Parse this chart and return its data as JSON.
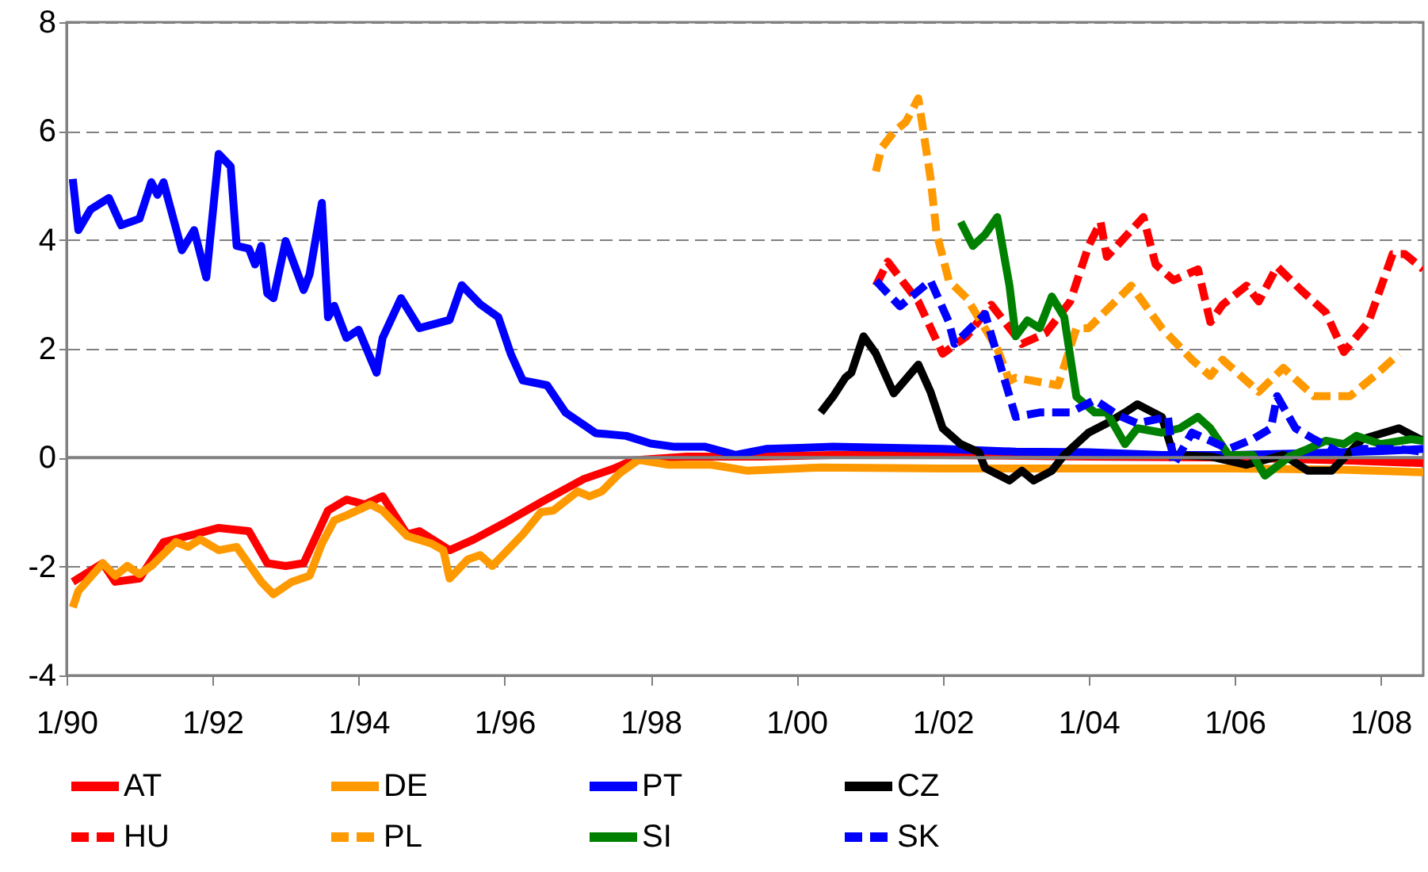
{
  "chart_data": {
    "type": "line",
    "xlim": [
      "1990-01",
      "2008-08"
    ],
    "xticks": [
      {
        "value": "1990-01",
        "label": "1/90"
      },
      {
        "value": "1992-01",
        "label": "1/92"
      },
      {
        "value": "1994-01",
        "label": "1/94"
      },
      {
        "value": "1996-01",
        "label": "1/96"
      },
      {
        "value": "1998-01",
        "label": "1/98"
      },
      {
        "value": "2000-01",
        "label": "1/00"
      },
      {
        "value": "2002-01",
        "label": "1/02"
      },
      {
        "value": "2004-01",
        "label": "1/04"
      },
      {
        "value": "2006-01",
        "label": "1/06"
      },
      {
        "value": "2008-01",
        "label": "1/08"
      }
    ],
    "ylim": [
      -4,
      8
    ],
    "yticks": [
      -4,
      -2,
      0,
      2,
      4,
      6,
      8
    ],
    "grid": "y",
    "legend": "bottom",
    "ref_lines": [
      {
        "axis": "y",
        "value": 0,
        "label": null,
        "color": "#808080",
        "line_style": "solid"
      }
    ],
    "series": [
      {
        "name": "AT",
        "color": "#ff0000",
        "line_style": "solid",
        "x": [
          "1990-02",
          "1990-07",
          "1990-09",
          "1991-01",
          "1991-05",
          "1991-10",
          "1992-02",
          "1992-07",
          "1992-10",
          "1993-01",
          "1993-04",
          "1993-08",
          "1993-11",
          "1994-02",
          "1994-05",
          "1994-09",
          "1994-11",
          "1995-04",
          "1995-08",
          "1996-01",
          "1996-07",
          "1997-02",
          "1997-07",
          "1997-10",
          "1998-07",
          "1999-07",
          "2000-07",
          "2002-01",
          "2004-01",
          "2006-01",
          "2007-07",
          "2008-08"
        ],
        "values": [
          -2.28,
          -1.94,
          -2.28,
          -2.22,
          -1.55,
          -1.41,
          -1.29,
          -1.35,
          -1.94,
          -1.99,
          -1.94,
          -0.97,
          -0.77,
          -0.86,
          -0.71,
          -1.41,
          -1.35,
          -1.7,
          -1.5,
          -1.2,
          -0.82,
          -0.39,
          -0.2,
          -0.05,
          0.02,
          0.02,
          0.05,
          0.05,
          0.02,
          0.0,
          -0.05,
          -0.1
        ]
      },
      {
        "name": "DE",
        "color": "#ff9900",
        "line_style": "solid",
        "x": [
          "1990-02",
          "1990-03",
          "1990-07",
          "1990-09",
          "1990-11",
          "1991-01",
          "1991-03",
          "1991-07",
          "1991-09",
          "1991-11",
          "1992-02",
          "1992-05",
          "1992-09",
          "1992-11",
          "1993-02",
          "1993-05",
          "1993-07",
          "1993-09",
          "1993-11",
          "1994-03",
          "1994-05",
          "1994-09",
          "1995-01",
          "1995-03",
          "1995-04",
          "1995-07",
          "1995-09",
          "1995-11",
          "1996-04",
          "1996-07",
          "1996-09",
          "1997-01",
          "1997-03",
          "1997-05",
          "1997-08",
          "1997-11",
          "1998-04",
          "1998-11",
          "1999-05",
          "2000-05",
          "2002-01",
          "2004-01",
          "2006-01",
          "2007-07",
          "2008-08"
        ],
        "values": [
          -2.75,
          -2.45,
          -1.94,
          -2.17,
          -1.99,
          -2.14,
          -1.99,
          -1.55,
          -1.64,
          -1.5,
          -1.7,
          -1.64,
          -2.28,
          -2.51,
          -2.28,
          -2.17,
          -1.58,
          -1.15,
          -1.06,
          -0.86,
          -0.97,
          -1.44,
          -1.58,
          -1.7,
          -2.22,
          -1.87,
          -1.79,
          -1.99,
          -1.41,
          -1.0,
          -0.97,
          -0.62,
          -0.71,
          -0.62,
          -0.28,
          -0.04,
          -0.13,
          -0.13,
          -0.24,
          -0.18,
          -0.2,
          -0.2,
          -0.2,
          -0.22,
          -0.27
        ]
      },
      {
        "name": "PT",
        "color": "#0000ff",
        "line_style": "solid",
        "x": [
          "1990-02",
          "1990-03",
          "1990-05",
          "1990-08",
          "1990-10",
          "1991-01",
          "1991-03",
          "1991-04",
          "1991-05",
          "1991-08",
          "1991-10",
          "1991-12",
          "1992-02",
          "1992-04",
          "1992-05",
          "1992-07",
          "1992-08",
          "1992-09",
          "1992-10",
          "1992-11",
          "1993-01",
          "1993-04",
          "1993-05",
          "1993-07",
          "1993-08",
          "1993-09",
          "1993-11",
          "1994-01",
          "1994-04",
          "1994-05",
          "1994-08",
          "1994-11",
          "1995-04",
          "1995-06",
          "1995-09",
          "1995-12",
          "1996-02",
          "1996-04",
          "1996-08",
          "1996-11",
          "1997-02",
          "1997-04",
          "1997-09",
          "1998-01",
          "1998-05",
          "1998-10",
          "1999-03",
          "1999-08",
          "2000-07",
          "2002-01",
          "2003-01",
          "2004-01",
          "2005-01",
          "2006-01",
          "2007-01",
          "2008-01",
          "2008-08"
        ],
        "values": [
          5.12,
          4.18,
          4.56,
          4.77,
          4.27,
          4.39,
          5.06,
          4.83,
          5.06,
          3.81,
          4.18,
          3.31,
          5.58,
          5.35,
          3.89,
          3.84,
          3.55,
          3.89,
          3.02,
          2.93,
          3.98,
          3.08,
          3.37,
          4.68,
          2.58,
          2.79,
          2.2,
          2.35,
          1.56,
          2.2,
          2.93,
          2.38,
          2.53,
          3.17,
          2.82,
          2.58,
          1.91,
          1.42,
          1.33,
          0.83,
          0.6,
          0.45,
          0.4,
          0.26,
          0.2,
          0.2,
          0.05,
          0.16,
          0.2,
          0.16,
          0.11,
          0.1,
          0.05,
          0.05,
          0.08,
          0.12,
          0.16
        ]
      },
      {
        "name": "CZ",
        "color": "#000000",
        "line_style": "solid",
        "x": [
          "2000-05",
          "2000-07",
          "2000-09",
          "2000-10",
          "2000-12",
          "2001-02",
          "2001-05",
          "2001-09",
          "2001-11",
          "2002-01",
          "2002-04",
          "2002-07",
          "2002-08",
          "2002-12",
          "2003-02",
          "2003-04",
          "2003-07",
          "2003-09",
          "2004-01",
          "2004-04",
          "2004-07",
          "2004-09",
          "2005-01",
          "2005-03",
          "2005-09",
          "2006-03",
          "2006-09",
          "2007-01",
          "2007-05",
          "2007-10",
          "2008-04",
          "2008-08"
        ],
        "values": [
          0.83,
          1.12,
          1.47,
          1.56,
          2.23,
          1.91,
          1.18,
          1.71,
          1.21,
          0.54,
          0.25,
          0.1,
          -0.19,
          -0.42,
          -0.24,
          -0.42,
          -0.24,
          0.05,
          0.46,
          0.63,
          0.83,
          0.98,
          0.75,
          0.05,
          0.02,
          -0.13,
          0.05,
          -0.24,
          -0.24,
          0.34,
          0.54,
          0.31
        ]
      },
      {
        "name": "HU",
        "color": "#ff0000",
        "line_style": "dashed",
        "x": [
          "2001-02",
          "2001-04",
          "2001-07",
          "2001-09",
          "2002-01",
          "2002-05",
          "2002-09",
          "2003-02",
          "2003-06",
          "2003-10",
          "2004-01",
          "2004-03",
          "2004-04",
          "2004-10",
          "2004-12",
          "2005-03",
          "2005-07",
          "2005-09",
          "2005-11",
          "2006-03",
          "2006-05",
          "2006-08",
          "2006-12",
          "2007-04",
          "2007-07",
          "2007-11",
          "2008-03",
          "2008-05",
          "2008-08"
        ],
        "values": [
          3.16,
          3.6,
          3.16,
          2.87,
          1.91,
          2.23,
          2.81,
          2.09,
          2.29,
          2.87,
          3.89,
          4.33,
          3.69,
          4.42,
          3.55,
          3.26,
          3.46,
          2.49,
          2.81,
          3.16,
          2.87,
          3.51,
          3.07,
          2.67,
          1.94,
          2.49,
          3.74,
          3.74,
          3.46
        ]
      },
      {
        "name": "PL",
        "color": "#ff9900",
        "line_style": "dashed",
        "x": [
          "2001-02",
          "2001-03",
          "2001-05",
          "2001-07",
          "2001-09",
          "2001-11",
          "2001-12",
          "2002-02",
          "2002-05",
          "2002-10",
          "2002-12",
          "2003-01",
          "2003-08",
          "2003-11",
          "2004-01",
          "2004-08",
          "2005-01",
          "2005-06",
          "2005-09",
          "2005-11",
          "2006-05",
          "2006-09",
          "2007-02",
          "2007-08",
          "2007-12",
          "2008-04"
        ],
        "values": [
          5.26,
          5.69,
          5.98,
          6.17,
          6.6,
          5.14,
          4.13,
          3.25,
          2.93,
          2.0,
          1.41,
          1.47,
          1.33,
          2.38,
          2.38,
          3.16,
          2.38,
          1.8,
          1.5,
          1.8,
          1.21,
          1.65,
          1.13,
          1.13,
          1.5,
          1.91
        ]
      },
      {
        "name": "SI",
        "color": "#008000",
        "line_style": "solid",
        "x": [
          "2002-04",
          "2002-06",
          "2002-08",
          "2002-10",
          "2002-12",
          "2003-01",
          "2003-03",
          "2003-05",
          "2003-07",
          "2003-09",
          "2003-11",
          "2004-02",
          "2004-04",
          "2004-07",
          "2004-09",
          "2005-01",
          "2005-04",
          "2005-07",
          "2005-09",
          "2005-12",
          "2006-04",
          "2006-06",
          "2006-10",
          "2007-01",
          "2007-04",
          "2007-07",
          "2007-09",
          "2008-01",
          "2008-06",
          "2008-08"
        ],
        "values": [
          4.33,
          3.89,
          4.1,
          4.42,
          3.16,
          2.23,
          2.52,
          2.38,
          2.96,
          2.58,
          1.12,
          0.83,
          0.83,
          0.25,
          0.54,
          0.46,
          0.54,
          0.75,
          0.54,
          0.05,
          0.05,
          -0.33,
          0.02,
          0.16,
          0.31,
          0.25,
          0.4,
          0.25,
          0.34,
          0.31
        ]
      },
      {
        "name": "SK",
        "color": "#0000ff",
        "line_style": "dashed",
        "x": [
          "2001-02",
          "2001-06",
          "2001-11",
          "2002-02",
          "2002-03",
          "2002-08",
          "2002-11",
          "2003-01",
          "2003-05",
          "2003-10",
          "2004-02",
          "2004-06",
          "2004-09",
          "2005-02",
          "2005-03",
          "2005-06",
          "2005-12",
          "2006-04",
          "2006-07",
          "2006-08",
          "2006-11",
          "2007-02",
          "2007-07",
          "2007-10",
          "2008-04",
          "2008-08"
        ],
        "values": [
          3.25,
          2.78,
          3.25,
          2.49,
          2.09,
          2.64,
          1.5,
          0.75,
          0.83,
          0.83,
          1.06,
          0.77,
          0.63,
          0.75,
          -0.13,
          0.46,
          0.16,
          0.34,
          0.54,
          1.13,
          0.54,
          0.34,
          0.05,
          0.16,
          0.16,
          0.11
        ]
      }
    ]
  }
}
